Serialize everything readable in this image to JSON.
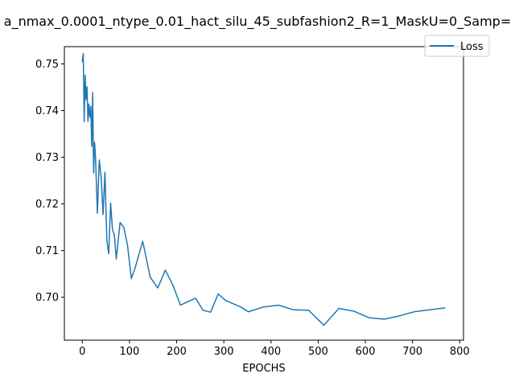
{
  "chart_data": {
    "type": "line",
    "title": "a_nmax_0.0001_ntype_0.01_hact_silu_45_subfashion2_R=1_MaskU=0_Samp=",
    "xlabel": "EPOCHS",
    "ylabel": "",
    "xlim": [
      -38,
      808
    ],
    "ylim": [
      0.6908,
      0.7537
    ],
    "xticks": [
      0,
      100,
      200,
      300,
      400,
      500,
      600,
      700,
      800
    ],
    "yticks": [
      0.7,
      0.71,
      0.72,
      0.73,
      0.74,
      0.75
    ],
    "xtick_labels": [
      "0",
      "100",
      "200",
      "300",
      "400",
      "500",
      "600",
      "700",
      "800"
    ],
    "ytick_labels": [
      "0.70",
      "0.71",
      "0.72",
      "0.73",
      "0.74",
      "0.75"
    ],
    "legend": {
      "placement": "top-right",
      "entries": [
        "Loss"
      ]
    },
    "grid": false,
    "series": [
      {
        "name": "Loss",
        "color": "#1f77b4",
        "x": [
          0,
          2,
          4,
          6,
          8,
          10,
          12,
          14,
          16,
          18,
          20,
          22,
          24,
          26,
          28,
          32,
          36,
          40,
          44,
          48,
          52,
          56,
          60,
          64,
          68,
          72,
          80,
          88,
          96,
          104,
          112,
          128,
          144,
          160,
          176,
          192,
          208,
          240,
          256,
          272,
          288,
          304,
          336,
          352,
          384,
          416,
          448,
          480,
          512,
          544,
          576,
          608,
          640,
          672,
          704,
          736,
          768
        ],
        "values": [
          0.7505,
          0.7522,
          0.7376,
          0.7476,
          0.7423,
          0.7451,
          0.7377,
          0.7414,
          0.7386,
          0.7409,
          0.7323,
          0.7439,
          0.7266,
          0.7332,
          0.7299,
          0.718,
          0.7294,
          0.7257,
          0.7177,
          0.7268,
          0.7122,
          0.7093,
          0.7202,
          0.7145,
          0.7133,
          0.7082,
          0.716,
          0.715,
          0.711,
          0.704,
          0.7063,
          0.712,
          0.7043,
          0.702,
          0.7058,
          0.7026,
          0.6983,
          0.6998,
          0.6972,
          0.6968,
          0.7007,
          0.6993,
          0.6979,
          0.6969,
          0.6979,
          0.6983,
          0.6973,
          0.6972,
          0.694,
          0.6976,
          0.697,
          0.6956,
          0.6953,
          0.696,
          0.6969,
          0.6973,
          0.6977
        ]
      }
    ]
  }
}
